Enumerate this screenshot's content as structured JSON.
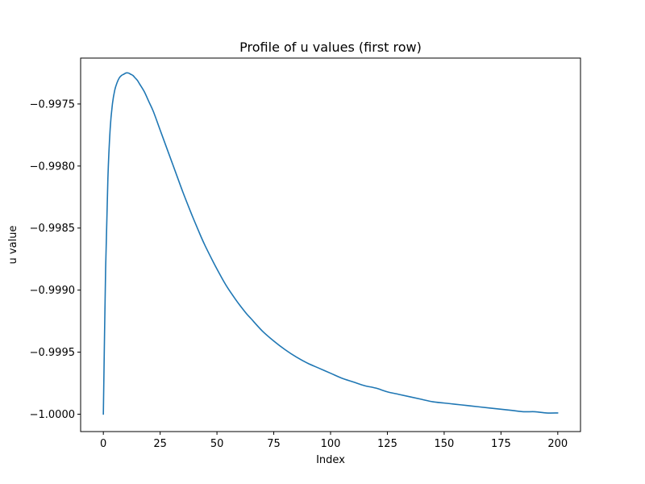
{
  "chart_data": {
    "type": "line",
    "title": "Profile of u values (first row)",
    "xlabel": "Index",
    "ylabel": "u value",
    "xlim": [
      -10,
      210
    ],
    "ylim": [
      -1.00014,
      -0.99713
    ],
    "xticks": [
      0,
      25,
      50,
      75,
      100,
      125,
      150,
      175,
      200
    ],
    "xtick_labels": [
      "0",
      "25",
      "50",
      "75",
      "100",
      "125",
      "150",
      "175",
      "200"
    ],
    "yticks": [
      -0.9975,
      -0.998,
      -0.9985,
      -0.999,
      -0.9995,
      -1.0
    ],
    "ytick_labels": [
      "−0.9975",
      "−0.9980",
      "−0.9985",
      "−0.9990",
      "−0.9995",
      "−1.0000"
    ],
    "grid": false,
    "colors": {
      "line": "#1f77b4",
      "axes": "#000000",
      "background": "#ffffff"
    },
    "series": [
      {
        "x": [
          0,
          1,
          2,
          3,
          4,
          5,
          6,
          7,
          8,
          9,
          10,
          11,
          12,
          13,
          14,
          15,
          16,
          18,
          20,
          22,
          25,
          28,
          30,
          32,
          35,
          38,
          40,
          43,
          45,
          48,
          50,
          53,
          55,
          58,
          60,
          63,
          65,
          70,
          75,
          80,
          85,
          90,
          95,
          100,
          105,
          110,
          115,
          120,
          125,
          130,
          135,
          140,
          145,
          150,
          155,
          160,
          165,
          170,
          175,
          180,
          185,
          190,
          195,
          200
        ],
        "values": [
          -1.0,
          -0.99883,
          -0.9981,
          -0.9977,
          -0.9975,
          -0.99739,
          -0.99733,
          -0.99729,
          -0.99727,
          -0.99726,
          -0.99725,
          -0.99725,
          -0.99726,
          -0.99727,
          -0.99729,
          -0.99731,
          -0.99734,
          -0.9974,
          -0.99748,
          -0.99756,
          -0.99771,
          -0.99786,
          -0.99796,
          -0.99806,
          -0.99821,
          -0.99835,
          -0.99844,
          -0.99857,
          -0.99865,
          -0.99876,
          -0.99883,
          -0.99893,
          -0.99899,
          -0.99907,
          -0.99912,
          -0.99919,
          -0.99923,
          -0.99933,
          -0.99941,
          -0.99948,
          -0.99954,
          -0.99959,
          -0.99963,
          -0.99967,
          -0.99971,
          -0.99974,
          -0.99977,
          -0.99979,
          -0.99982,
          -0.99984,
          -0.99986,
          -0.99988,
          -0.9999,
          -0.99991,
          -0.99992,
          -0.99993,
          -0.99994,
          -0.99995,
          -0.99996,
          -0.99997,
          -0.99998,
          -0.99998,
          -0.99999,
          -0.99999
        ]
      }
    ]
  }
}
